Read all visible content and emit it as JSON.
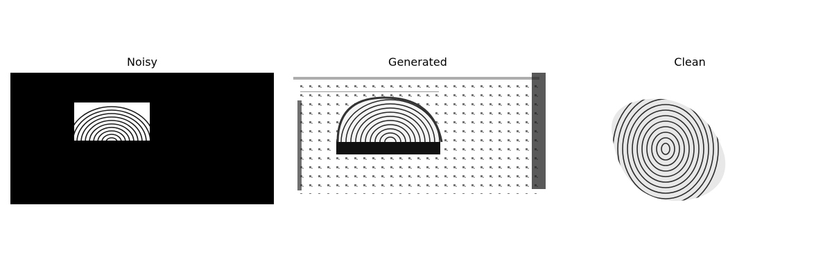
{
  "figure": {
    "panels": [
      {
        "title": "Noisy"
      },
      {
        "title": "Generated"
      },
      {
        "title": "Clean"
      }
    ]
  }
}
